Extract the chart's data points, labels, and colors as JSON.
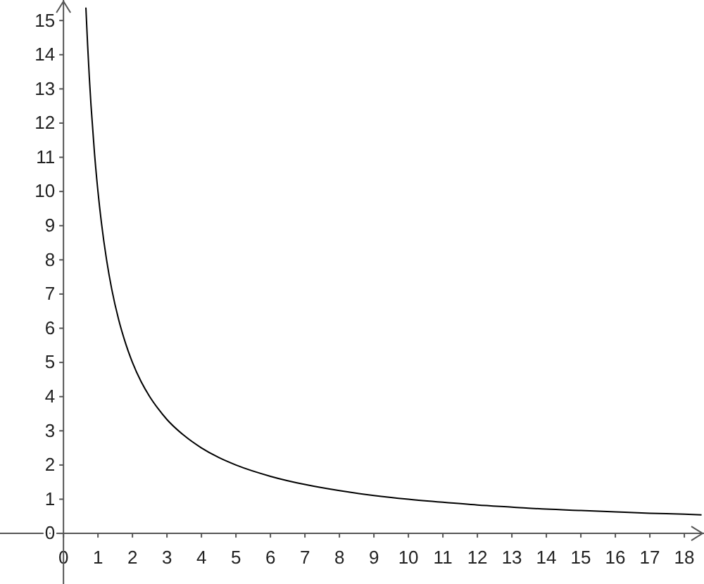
{
  "chart_data": {
    "type": "line",
    "x": [
      0.65,
      0.7,
      0.75,
      0.8,
      0.9,
      1,
      1.1,
      1.25,
      1.4,
      1.6,
      1.8,
      2,
      2.25,
      2.5,
      2.75,
      3,
      3.5,
      4,
      4.5,
      5,
      6,
      7,
      8,
      9,
      10,
      11,
      12,
      13,
      14,
      15,
      16,
      17,
      18,
      18.5
    ],
    "series": [
      {
        "color": "#000000",
        "values": [
          15.38,
          14.29,
          13.33,
          12.5,
          11.11,
          10,
          9.09,
          8,
          7.14,
          6.25,
          5.56,
          5,
          4.44,
          4,
          3.64,
          3.33,
          2.86,
          2.5,
          2.22,
          2,
          1.67,
          1.43,
          1.25,
          1.11,
          1,
          0.91,
          0.83,
          0.77,
          0.71,
          0.67,
          0.63,
          0.59,
          0.56,
          0.54
        ]
      }
    ],
    "xlim": [
      -1.84,
      18.57
    ],
    "ylim": [
      -1.48,
      15.6
    ],
    "xticks": [
      0,
      1,
      2,
      3,
      4,
      5,
      6,
      7,
      8,
      9,
      10,
      11,
      12,
      13,
      14,
      15,
      16,
      17,
      18
    ],
    "yticks": [
      0,
      1,
      2,
      3,
      4,
      5,
      6,
      7,
      8,
      9,
      10,
      11,
      12,
      13,
      14,
      15
    ],
    "grid": false,
    "marker": "none",
    "line_style": "solid"
  }
}
